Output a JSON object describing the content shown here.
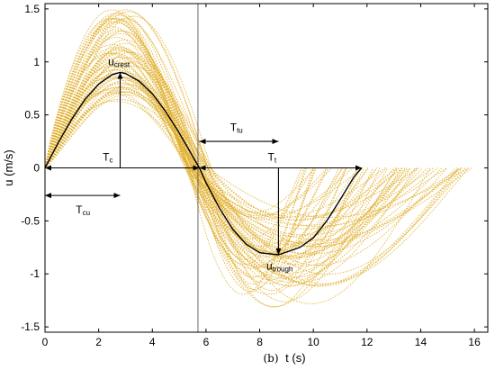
{
  "chart_data": {
    "type": "line",
    "xlabel": "t (s)",
    "xlabel_prefix": "(b)",
    "ylabel": "u (m/s)",
    "xlim": [
      0,
      16.5
    ],
    "ylim": [
      -1.55,
      1.55
    ],
    "x_ticks": [
      0,
      2,
      4,
      6,
      8,
      10,
      12,
      14,
      16
    ],
    "x_tick_labels": [
      "0",
      "2",
      "4",
      "6",
      "8",
      "10",
      "12",
      "14",
      "16"
    ],
    "y_ticks": [
      1.5,
      1,
      0.5,
      0,
      -0.5,
      -1,
      -1.5
    ],
    "y_tick_labels": [
      "1.5",
      "1",
      "0.5",
      "0",
      "-0.5",
      "-1",
      "-1.5"
    ],
    "grid": false,
    "colors": {
      "ensemble": "#e0ae2a",
      "mean": "#000000",
      "vline": "#444444"
    },
    "ensemble": {
      "count": 70,
      "crest_min": 0.62,
      "crest_max": 1.5,
      "trough_min": -0.42,
      "trough_max": -1.35,
      "Tc_min": 5.2,
      "Tc_max": 6.2,
      "end_min": 9.5,
      "end_max": 16.0
    },
    "series": [
      {
        "name": "",
        "x": [
          0,
          0.5,
          1,
          1.5,
          2,
          2.5,
          2.8,
          3,
          3.5,
          4,
          4.5,
          5,
          5.5,
          5.75,
          6,
          6.5,
          7,
          7.5,
          8,
          8.7,
          9.5,
          10,
          10.5,
          11,
          11.5,
          11.8
        ],
        "y": [
          0,
          0.24,
          0.46,
          0.65,
          0.79,
          0.88,
          0.9,
          0.89,
          0.82,
          0.7,
          0.53,
          0.33,
          0.11,
          0,
          -0.14,
          -0.38,
          -0.58,
          -0.72,
          -0.8,
          -0.82,
          -0.75,
          -0.66,
          -0.5,
          -0.3,
          -0.09,
          0
        ]
      }
    ],
    "vline_x": 5.7,
    "annotations": [
      {
        "id": "ucrest",
        "main": "u",
        "sub": "crest",
        "x": 2.35,
        "y": 0.97
      },
      {
        "id": "Tc",
        "main": "T",
        "sub": "c",
        "x": 2.15,
        "y": 0.07
      },
      {
        "id": "Tt",
        "main": "T",
        "sub": "t",
        "x": 8.3,
        "y": 0.07
      },
      {
        "id": "Ttu",
        "main": "T",
        "sub": "tu",
        "x": 6.9,
        "y": 0.35
      },
      {
        "id": "Tcu",
        "main": "T",
        "sub": "cu",
        "x": 1.15,
        "y": -0.43
      },
      {
        "id": "utrough",
        "main": "u",
        "sub": "trough",
        "x": 8.25,
        "y": -0.96
      }
    ],
    "arrows": [
      {
        "id": "crest-arrow",
        "x1": 2.8,
        "y1": 0,
        "x2": 2.8,
        "y2": 0.9,
        "heads": "end"
      },
      {
        "id": "trough-arrow",
        "x1": 8.7,
        "y1": 0,
        "x2": 8.7,
        "y2": -0.82,
        "heads": "end"
      },
      {
        "id": "Tc-arrow",
        "x1": 0,
        "y1": 0,
        "x2": 5.75,
        "y2": 0,
        "heads": "both"
      },
      {
        "id": "Tt-arrow",
        "x1": 5.75,
        "y1": 0,
        "x2": 11.8,
        "y2": 0,
        "heads": "both"
      },
      {
        "id": "Ttu-arrow",
        "x1": 5.75,
        "y1": 0.25,
        "x2": 8.7,
        "y2": 0.25,
        "heads": "both"
      },
      {
        "id": "Tcu-arrow",
        "x1": 0,
        "y1": -0.26,
        "x2": 2.8,
        "y2": -0.26,
        "heads": "both"
      }
    ]
  }
}
